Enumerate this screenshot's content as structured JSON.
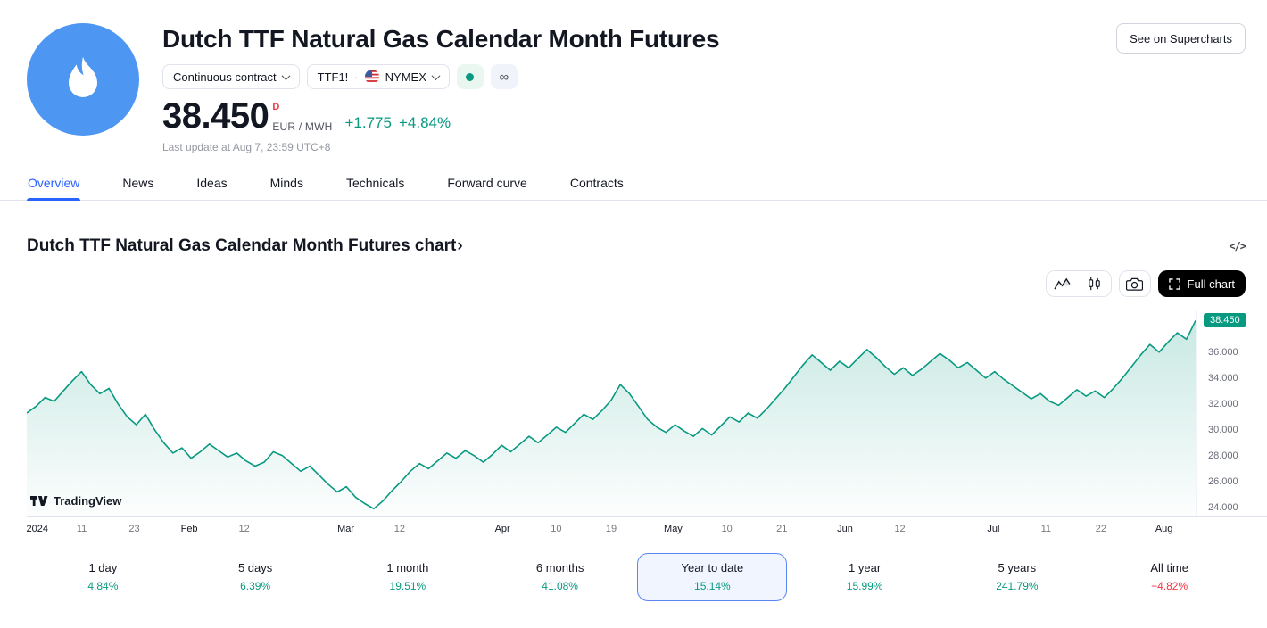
{
  "colors": {
    "up": "#089981",
    "down": "#f23645",
    "accent": "#2962ff",
    "line": "#089981"
  },
  "header": {
    "title": "Dutch TTF Natural Gas Calendar Month Futures",
    "supercharts_button": "See on Supercharts",
    "contract_dropdown": "Continuous contract",
    "symbol": "TTF1!",
    "separator": "·",
    "exchange": "NYMEX",
    "infinity": "∞",
    "price": "38.450",
    "price_flag": "D",
    "unit": "EUR / MWH",
    "change_abs": "+1.775",
    "change_pct": "+4.84%",
    "last_update": "Last update at Aug 7, 23:59 UTC+8"
  },
  "tabs": [
    {
      "label": "Overview",
      "active": true
    },
    {
      "label": "News",
      "active": false
    },
    {
      "label": "Ideas",
      "active": false
    },
    {
      "label": "Minds",
      "active": false
    },
    {
      "label": "Technicals",
      "active": false
    },
    {
      "label": "Forward curve",
      "active": false
    },
    {
      "label": "Contracts",
      "active": false
    }
  ],
  "section": {
    "chart_title": "Dutch TTF Natural Gas Calendar Month Futures chart",
    "chevron": "›",
    "code_icon": "</>",
    "full_chart_button": "Full chart"
  },
  "watermark": "TradingView",
  "chart_data": {
    "type": "area",
    "title": "Dutch TTF Natural Gas Calendar Month Futures — Year to date",
    "xlabel": "",
    "ylabel": "EUR / MWH",
    "ylim": [
      23.3,
      39.3
    ],
    "grid": false,
    "legend": false,
    "line_color": "#089981",
    "fill_color": "rgba(8,153,129,0.22)",
    "last_price": {
      "label": "38.450",
      "value": 38.45
    },
    "y_ticks": [
      {
        "label": "36.000",
        "value": 36
      },
      {
        "label": "34.000",
        "value": 34
      },
      {
        "label": "32.000",
        "value": 32
      },
      {
        "label": "30.000",
        "value": 30
      },
      {
        "label": "28.000",
        "value": 28
      },
      {
        "label": "26.000",
        "value": 26
      },
      {
        "label": "24.000",
        "value": 24
      }
    ],
    "x_ticks": [
      {
        "label": "2024",
        "pos": 0.9,
        "strong": true
      },
      {
        "label": "11",
        "pos": 4.7,
        "strong": false
      },
      {
        "label": "23",
        "pos": 9.2,
        "strong": false
      },
      {
        "label": "Feb",
        "pos": 13.9,
        "strong": true
      },
      {
        "label": "12",
        "pos": 18.6,
        "strong": false
      },
      {
        "label": "Mar",
        "pos": 27.3,
        "strong": true
      },
      {
        "label": "12",
        "pos": 31.9,
        "strong": false
      },
      {
        "label": "Apr",
        "pos": 40.7,
        "strong": true
      },
      {
        "label": "10",
        "pos": 45.3,
        "strong": false
      },
      {
        "label": "19",
        "pos": 50.0,
        "strong": false
      },
      {
        "label": "May",
        "pos": 55.3,
        "strong": true
      },
      {
        "label": "10",
        "pos": 59.9,
        "strong": false
      },
      {
        "label": "21",
        "pos": 64.6,
        "strong": false
      },
      {
        "label": "Jun",
        "pos": 70.0,
        "strong": true
      },
      {
        "label": "12",
        "pos": 74.7,
        "strong": false
      },
      {
        "label": "Jul",
        "pos": 82.7,
        "strong": true
      },
      {
        "label": "11",
        "pos": 87.2,
        "strong": false
      },
      {
        "label": "22",
        "pos": 91.9,
        "strong": false
      },
      {
        "label": "Aug",
        "pos": 97.3,
        "strong": true
      }
    ],
    "values": [
      31.3,
      31.8,
      32.5,
      32.2,
      33.0,
      33.8,
      34.5,
      33.5,
      32.8,
      33.2,
      32.0,
      31.0,
      30.4,
      31.2,
      30.0,
      29.0,
      28.2,
      28.6,
      27.8,
      28.3,
      28.9,
      28.4,
      27.9,
      28.2,
      27.6,
      27.2,
      27.5,
      28.3,
      28.0,
      27.4,
      26.8,
      27.2,
      26.5,
      25.8,
      25.2,
      25.6,
      24.8,
      24.3,
      23.9,
      24.5,
      25.3,
      26.0,
      26.8,
      27.4,
      27.0,
      27.6,
      28.2,
      27.8,
      28.4,
      28.0,
      27.5,
      28.1,
      28.8,
      28.3,
      28.9,
      29.5,
      29.0,
      29.6,
      30.2,
      29.8,
      30.5,
      31.2,
      30.8,
      31.5,
      32.3,
      33.5,
      32.8,
      31.8,
      30.8,
      30.2,
      29.8,
      30.4,
      29.9,
      29.5,
      30.1,
      29.6,
      30.3,
      31.0,
      30.6,
      31.3,
      30.9,
      31.6,
      32.4,
      33.2,
      34.1,
      35.0,
      35.8,
      35.2,
      34.6,
      35.3,
      34.8,
      35.5,
      36.2,
      35.6,
      34.9,
      34.3,
      34.8,
      34.2,
      34.7,
      35.3,
      35.9,
      35.4,
      34.8,
      35.2,
      34.6,
      34.0,
      34.5,
      33.9,
      33.4,
      32.9,
      32.4,
      32.8,
      32.2,
      31.9,
      32.5,
      33.1,
      32.6,
      33.0,
      32.5,
      33.2,
      34.0,
      34.9,
      35.8,
      36.6,
      36.0,
      36.8,
      37.5,
      37.0,
      38.45
    ]
  },
  "ranges": [
    {
      "label": "1 day",
      "value": "4.84%",
      "positive": true,
      "selected": false
    },
    {
      "label": "5 days",
      "value": "6.39%",
      "positive": true,
      "selected": false
    },
    {
      "label": "1 month",
      "value": "19.51%",
      "positive": true,
      "selected": false
    },
    {
      "label": "6 months",
      "value": "41.08%",
      "positive": true,
      "selected": false
    },
    {
      "label": "Year to date",
      "value": "15.14%",
      "positive": true,
      "selected": true
    },
    {
      "label": "1 year",
      "value": "15.99%",
      "positive": true,
      "selected": false
    },
    {
      "label": "5 years",
      "value": "241.79%",
      "positive": true,
      "selected": false
    },
    {
      "label": "All time",
      "value": "−4.82%",
      "positive": false,
      "selected": false
    }
  ]
}
